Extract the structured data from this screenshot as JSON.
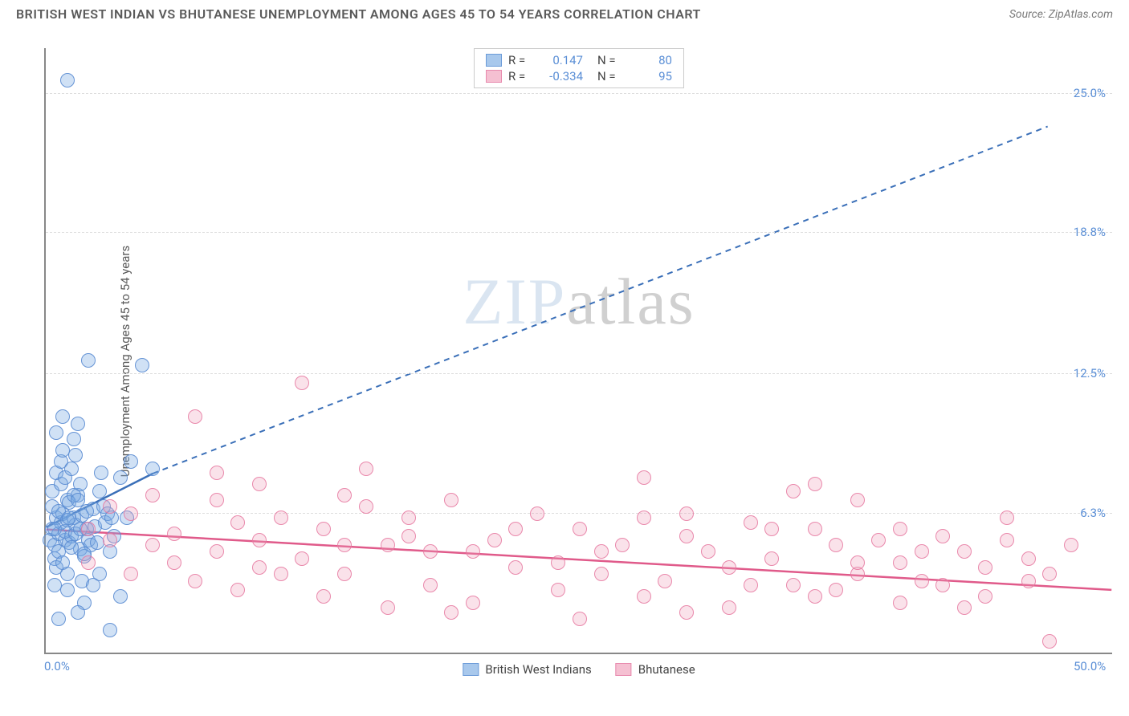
{
  "title": "BRITISH WEST INDIAN VS BHUTANESE UNEMPLOYMENT AMONG AGES 45 TO 54 YEARS CORRELATION CHART",
  "source": "Source: ZipAtlas.com",
  "watermark_zip": "ZIP",
  "watermark_atlas": "atlas",
  "chart": {
    "type": "scatter",
    "ylabel": "Unemployment Among Ages 45 to 54 years",
    "xlim": [
      0,
      50
    ],
    "ylim": [
      0,
      27
    ],
    "xticks": [
      {
        "v": 0,
        "label": "0.0%"
      },
      {
        "v": 50,
        "label": "50.0%"
      }
    ],
    "yticks": [
      {
        "v": 6.3,
        "label": "6.3%"
      },
      {
        "v": 12.5,
        "label": "12.5%"
      },
      {
        "v": 18.8,
        "label": "18.8%"
      },
      {
        "v": 25.0,
        "label": "25.0%"
      }
    ],
    "background_color": "#ffffff",
    "grid_color": "#dddddd",
    "axis_color": "#888888",
    "marker_radius": 9,
    "series": [
      {
        "name": "British West Indians",
        "color_fill": "rgba(120,170,225,0.35)",
        "color_stroke": "#5a8cd2",
        "swatch_fill": "#a8c8ec",
        "swatch_border": "#6b9bd8",
        "r": "0.147",
        "n": "80",
        "trend": {
          "x1": 0,
          "y1": 5.6,
          "x2_solid": 5,
          "y2_solid": 8.0,
          "x2_dash": 47,
          "y2_dash": 23.5,
          "color": "#3a6fb8",
          "width": 2.5
        },
        "points": [
          [
            0.2,
            5.0
          ],
          [
            0.3,
            5.5
          ],
          [
            0.4,
            4.8
          ],
          [
            0.5,
            6.0
          ],
          [
            0.3,
            6.5
          ],
          [
            0.6,
            5.3
          ],
          [
            0.4,
            4.2
          ],
          [
            0.7,
            5.8
          ],
          [
            0.5,
            3.8
          ],
          [
            0.8,
            6.2
          ],
          [
            0.3,
            7.2
          ],
          [
            0.9,
            5.0
          ],
          [
            0.6,
            4.5
          ],
          [
            1.0,
            6.8
          ],
          [
            0.4,
            5.5
          ],
          [
            1.1,
            4.9
          ],
          [
            0.7,
            7.5
          ],
          [
            1.2,
            5.2
          ],
          [
            0.5,
            8.0
          ],
          [
            1.3,
            6.0
          ],
          [
            0.8,
            4.0
          ],
          [
            1.4,
            5.7
          ],
          [
            0.6,
            6.3
          ],
          [
            1.5,
            7.0
          ],
          [
            0.9,
            5.4
          ],
          [
            1.6,
            4.6
          ],
          [
            0.7,
            8.5
          ],
          [
            1.7,
            6.1
          ],
          [
            1.0,
            5.9
          ],
          [
            1.8,
            4.3
          ],
          [
            0.8,
            9.0
          ],
          [
            1.9,
            5.5
          ],
          [
            1.1,
            6.7
          ],
          [
            2.0,
            5.0
          ],
          [
            0.9,
            7.8
          ],
          [
            2.1,
            4.8
          ],
          [
            1.2,
            8.2
          ],
          [
            2.2,
            6.4
          ],
          [
            1.0,
            3.5
          ],
          [
            2.3,
            5.6
          ],
          [
            1.3,
            9.5
          ],
          [
            2.4,
            4.9
          ],
          [
            1.1,
            6.0
          ],
          [
            2.5,
            7.2
          ],
          [
            1.4,
            5.3
          ],
          [
            2.6,
            8.0
          ],
          [
            1.2,
            4.7
          ],
          [
            2.7,
            6.5
          ],
          [
            1.5,
            10.2
          ],
          [
            2.8,
            5.8
          ],
          [
            1.3,
            7.0
          ],
          [
            2.9,
            6.2
          ],
          [
            1.6,
            5.5
          ],
          [
            3.0,
            4.5
          ],
          [
            1.4,
            8.8
          ],
          [
            3.1,
            6.0
          ],
          [
            1.7,
            3.2
          ],
          [
            3.2,
            5.2
          ],
          [
            1.5,
            6.8
          ],
          [
            0.5,
            9.8
          ],
          [
            1.8,
            4.4
          ],
          [
            0.8,
            10.5
          ],
          [
            1.6,
            7.5
          ],
          [
            2.0,
            13.0
          ],
          [
            1.9,
            6.3
          ],
          [
            4.5,
            12.8
          ],
          [
            3.5,
            2.5
          ],
          [
            1.0,
            2.8
          ],
          [
            3.0,
            1.0
          ],
          [
            0.4,
            3.0
          ],
          [
            2.5,
            3.5
          ],
          [
            1.8,
            2.2
          ],
          [
            4.0,
            8.5
          ],
          [
            3.5,
            7.8
          ],
          [
            5.0,
            8.2
          ],
          [
            3.8,
            6.0
          ],
          [
            1.0,
            25.5
          ],
          [
            0.6,
            1.5
          ],
          [
            2.2,
            3.0
          ],
          [
            1.5,
            1.8
          ]
        ]
      },
      {
        "name": "Bhutanese",
        "color_fill": "rgba(240,160,185,0.3)",
        "color_stroke": "#e678a0",
        "swatch_fill": "#f5c0d2",
        "swatch_border": "#e88aae",
        "r": "-0.334",
        "n": "95",
        "trend": {
          "x1": 0,
          "y1": 5.5,
          "x2_solid": 50,
          "y2_solid": 2.8,
          "color": "#e05a8a",
          "width": 2.5
        },
        "points": [
          [
            2,
            5.5
          ],
          [
            3,
            5.0
          ],
          [
            4,
            6.2
          ],
          [
            5,
            4.8
          ],
          [
            6,
            5.3
          ],
          [
            7,
            10.5
          ],
          [
            8,
            4.5
          ],
          [
            9,
            5.8
          ],
          [
            10,
            3.8
          ],
          [
            11,
            6.0
          ],
          [
            12,
            4.2
          ],
          [
            8,
            8.0
          ],
          [
            13,
            5.5
          ],
          [
            14,
            3.5
          ],
          [
            15,
            6.5
          ],
          [
            16,
            4.8
          ],
          [
            12,
            12.0
          ],
          [
            17,
            5.2
          ],
          [
            18,
            3.0
          ],
          [
            19,
            6.8
          ],
          [
            20,
            4.5
          ],
          [
            10,
            7.5
          ],
          [
            21,
            5.0
          ],
          [
            22,
            3.8
          ],
          [
            23,
            6.2
          ],
          [
            24,
            4.0
          ],
          [
            25,
            5.5
          ],
          [
            26,
            3.5
          ],
          [
            14,
            7.0
          ],
          [
            27,
            4.8
          ],
          [
            28,
            6.0
          ],
          [
            29,
            3.2
          ],
          [
            30,
            5.2
          ],
          [
            31,
            4.5
          ],
          [
            32,
            3.8
          ],
          [
            33,
            5.8
          ],
          [
            15,
            8.2
          ],
          [
            34,
            4.2
          ],
          [
            35,
            3.0
          ],
          [
            36,
            5.5
          ],
          [
            37,
            4.8
          ],
          [
            38,
            3.5
          ],
          [
            39,
            5.0
          ],
          [
            40,
            4.0
          ],
          [
            41,
            3.2
          ],
          [
            42,
            5.2
          ],
          [
            36,
            7.5
          ],
          [
            43,
            4.5
          ],
          [
            44,
            3.8
          ],
          [
            45,
            5.0
          ],
          [
            46,
            4.2
          ],
          [
            47,
            3.5
          ],
          [
            38,
            6.8
          ],
          [
            48,
            4.8
          ],
          [
            2,
            4.0
          ],
          [
            3,
            6.5
          ],
          [
            4,
            3.5
          ],
          [
            5,
            7.0
          ],
          [
            6,
            4.0
          ],
          [
            7,
            3.2
          ],
          [
            8,
            6.8
          ],
          [
            9,
            2.8
          ],
          [
            10,
            5.0
          ],
          [
            11,
            3.5
          ],
          [
            13,
            2.5
          ],
          [
            14,
            4.8
          ],
          [
            16,
            2.0
          ],
          [
            17,
            6.0
          ],
          [
            18,
            4.5
          ],
          [
            20,
            2.2
          ],
          [
            22,
            5.5
          ],
          [
            24,
            2.8
          ],
          [
            26,
            4.5
          ],
          [
            28,
            2.5
          ],
          [
            30,
            6.2
          ],
          [
            32,
            2.0
          ],
          [
            34,
            5.5
          ],
          [
            36,
            2.5
          ],
          [
            38,
            4.0
          ],
          [
            40,
            2.2
          ],
          [
            42,
            3.0
          ],
          [
            44,
            2.5
          ],
          [
            46,
            3.2
          ],
          [
            25,
            1.5
          ],
          [
            30,
            1.8
          ],
          [
            35,
            7.2
          ],
          [
            40,
            5.5
          ],
          [
            45,
            6.0
          ],
          [
            33,
            3.0
          ],
          [
            37,
            2.8
          ],
          [
            41,
            4.5
          ],
          [
            43,
            2.0
          ],
          [
            47,
            0.5
          ],
          [
            28,
            7.8
          ],
          [
            19,
            1.8
          ]
        ]
      }
    ],
    "legend_bottom": [
      {
        "label": "British West Indians",
        "swatch_fill": "#a8c8ec",
        "swatch_border": "#6b9bd8"
      },
      {
        "label": "Bhutanese",
        "swatch_fill": "#f5c0d2",
        "swatch_border": "#e88aae"
      }
    ]
  }
}
